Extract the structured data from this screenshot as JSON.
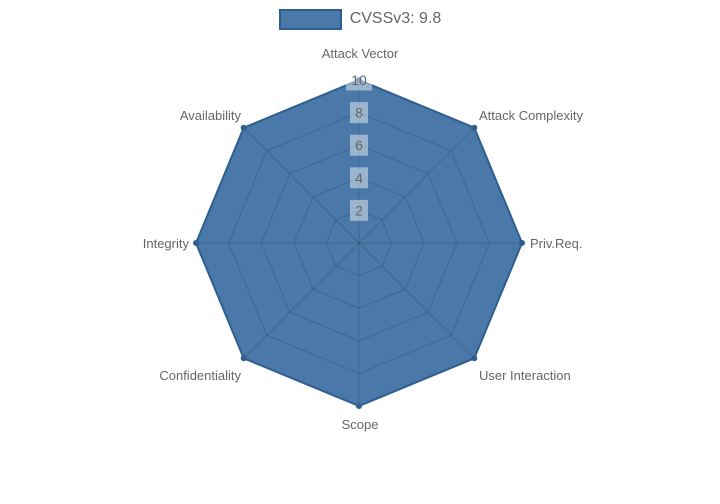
{
  "legend": {
    "label": "CVSSv3: 9.8"
  },
  "chart_data": {
    "type": "radar",
    "categories": [
      "Attack Vector",
      "Attack Complexity",
      "Priv.Req.",
      "User Interaction",
      "Scope",
      "Confidentiality",
      "Integrity",
      "Availability"
    ],
    "series": [
      {
        "name": "CVSSv3: 9.8",
        "values": [
          10,
          10,
          10,
          10,
          10,
          10,
          10,
          10
        ]
      }
    ],
    "radial_axis": {
      "min": 0,
      "max": 10,
      "ticks": [
        2,
        4,
        6,
        8,
        10
      ]
    },
    "grid": true,
    "legend_position": "top-center",
    "colors": {
      "series_fill": "#4a78a8",
      "series_border": "#2e5e8f",
      "grid_line": "rgba(0,0,0,0.15)",
      "tick_text": "#666666",
      "tick_backdrop": "rgba(255,255,255,0.45)",
      "category_label": "#666666",
      "legend_text": "#666666",
      "background": "#ffffff"
    }
  }
}
